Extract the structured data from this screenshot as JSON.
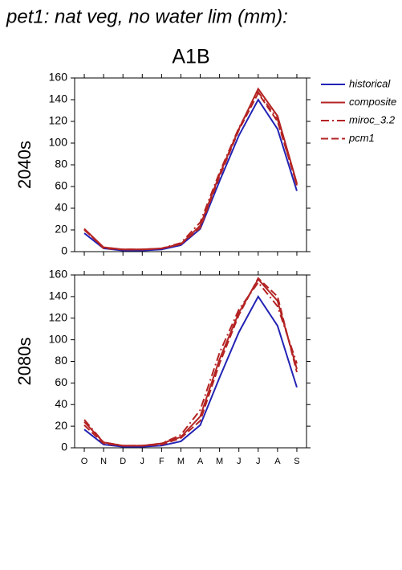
{
  "chart_data": [
    {
      "type": "line",
      "title": "pet1: nat veg, no water lim (mm):",
      "subtitle": "A1B",
      "ylabel": "2040s",
      "ylim": [
        0,
        160
      ],
      "yticks": [
        0,
        20,
        40,
        60,
        80,
        100,
        120,
        140,
        160
      ],
      "legend": "right",
      "series": [
        {
          "name": "historical",
          "color": "#2323b4",
          "dash": "solid",
          "values": [
            17,
            3,
            1,
            1,
            2,
            6,
            21,
            65,
            107,
            140,
            113,
            56
          ]
        },
        {
          "name": "composite",
          "color": "#b42323",
          "dash": "solid",
          "values": [
            21,
            4,
            2,
            2,
            3,
            7,
            24,
            71,
            113,
            150,
            125,
            63
          ]
        },
        {
          "name": "miroc_3.2",
          "color": "#b42323",
          "dash": "dashdot",
          "values": [
            20,
            4,
            2,
            2,
            3,
            8,
            27,
            73,
            114,
            147,
            122,
            61
          ]
        },
        {
          "name": "pcm1",
          "color": "#b42323",
          "dash": "dashed",
          "values": [
            21,
            3,
            2,
            2,
            3,
            7,
            22,
            69,
            112,
            146,
            120,
            62
          ]
        }
      ]
    },
    {
      "type": "line",
      "ylabel": "2080s",
      "categories": [
        "O",
        "N",
        "D",
        "J",
        "F",
        "M",
        "A",
        "M",
        "J",
        "J",
        "A",
        "S"
      ],
      "ylim": [
        0,
        160
      ],
      "yticks": [
        0,
        20,
        40,
        60,
        80,
        100,
        120,
        140,
        160
      ],
      "series": [
        {
          "color": "#2323b4",
          "dash": "solid",
          "values": [
            17,
            3,
            1,
            1,
            2,
            6,
            21,
            65,
            107,
            140,
            113,
            56
          ]
        },
        {
          "color": "#b42323",
          "dash": "solid",
          "values": [
            24,
            5,
            2,
            2,
            4,
            10,
            29,
            82,
            125,
            156,
            136,
            73
          ]
        },
        {
          "color": "#b42323",
          "dash": "dashdot",
          "values": [
            26,
            5,
            2,
            2,
            4,
            12,
            35,
            88,
            128,
            153,
            131,
            78
          ]
        },
        {
          "color": "#b42323",
          "dash": "dashed",
          "values": [
            21,
            4,
            2,
            2,
            3,
            9,
            25,
            78,
            123,
            157,
            140,
            70
          ]
        }
      ]
    }
  ]
}
